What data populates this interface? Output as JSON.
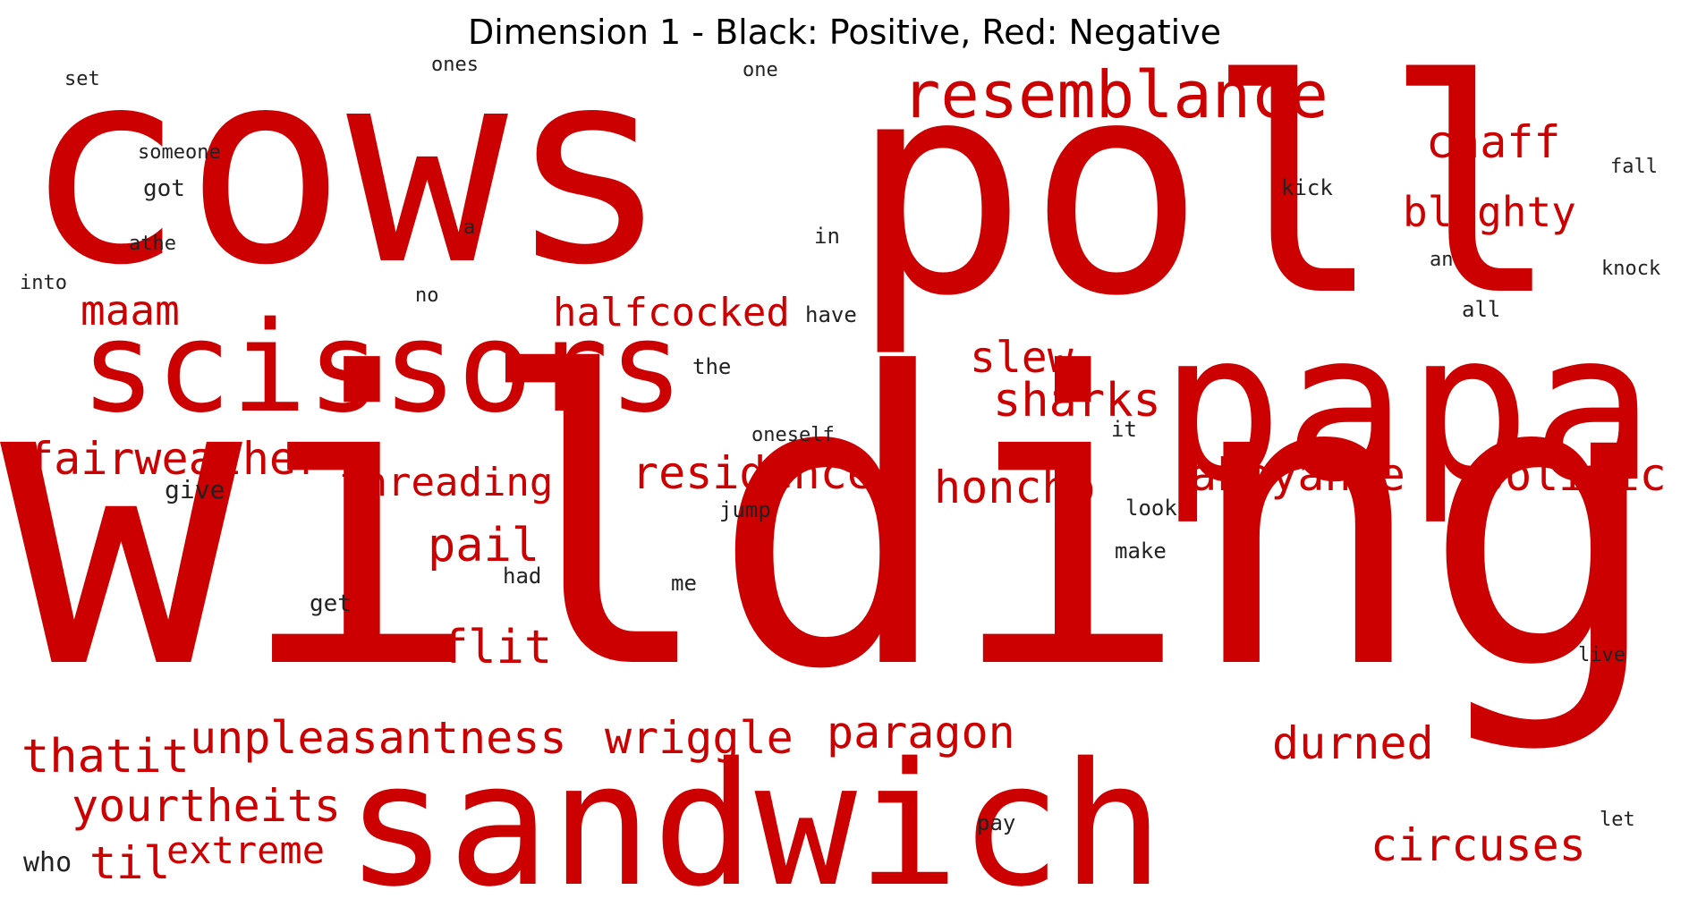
{
  "title": "Dimension 1 - Black: Positive, Red: Negative",
  "colors": {
    "positive": "#222222",
    "negative": "#cc0000"
  },
  "words": {
    "cows": "cows",
    "poll": "poll",
    "wilding": "wilding",
    "papa": "papa",
    "scissors": "scissors",
    "sandwich": "sandwich",
    "resemblance": "resemblance",
    "chaff": "chaff",
    "blighty": "blighty",
    "maam": "maam",
    "halfcocked": "halfcocked",
    "slew": "slew",
    "sharks": "sharks",
    "fairweather": "fairweather",
    "threading": "threading",
    "residence": "residence",
    "honcho": "honcho",
    "abeyance": "abeyance",
    "politic": "politic",
    "pail": "pail",
    "flit": "flit",
    "unpleasantness": "unpleasantness",
    "wriggle": "wriggle",
    "paragon": "paragon",
    "thatit": "thatit",
    "durned": "durned",
    "yourtheits": "yourtheits",
    "til": "til",
    "extreme": "extreme",
    "circuses": "circuses",
    "set": "set",
    "ones": "ones",
    "one": "one",
    "someone": "someone",
    "got": "got",
    "kick": "kick",
    "fall": "fall",
    "athe": "athe",
    "a": "a",
    "in": "in",
    "an": "an",
    "knock": "knock",
    "into": "into",
    "no": "no",
    "have": "have",
    "all": "all",
    "the": "the",
    "oneself": "oneself",
    "it": "it",
    "give": "give",
    "jump": "jump",
    "look": "look",
    "had": "had",
    "make": "make",
    "me": "me",
    "get": "get",
    "live": "live",
    "pay": "pay",
    "let": "let",
    "who": "who"
  }
}
